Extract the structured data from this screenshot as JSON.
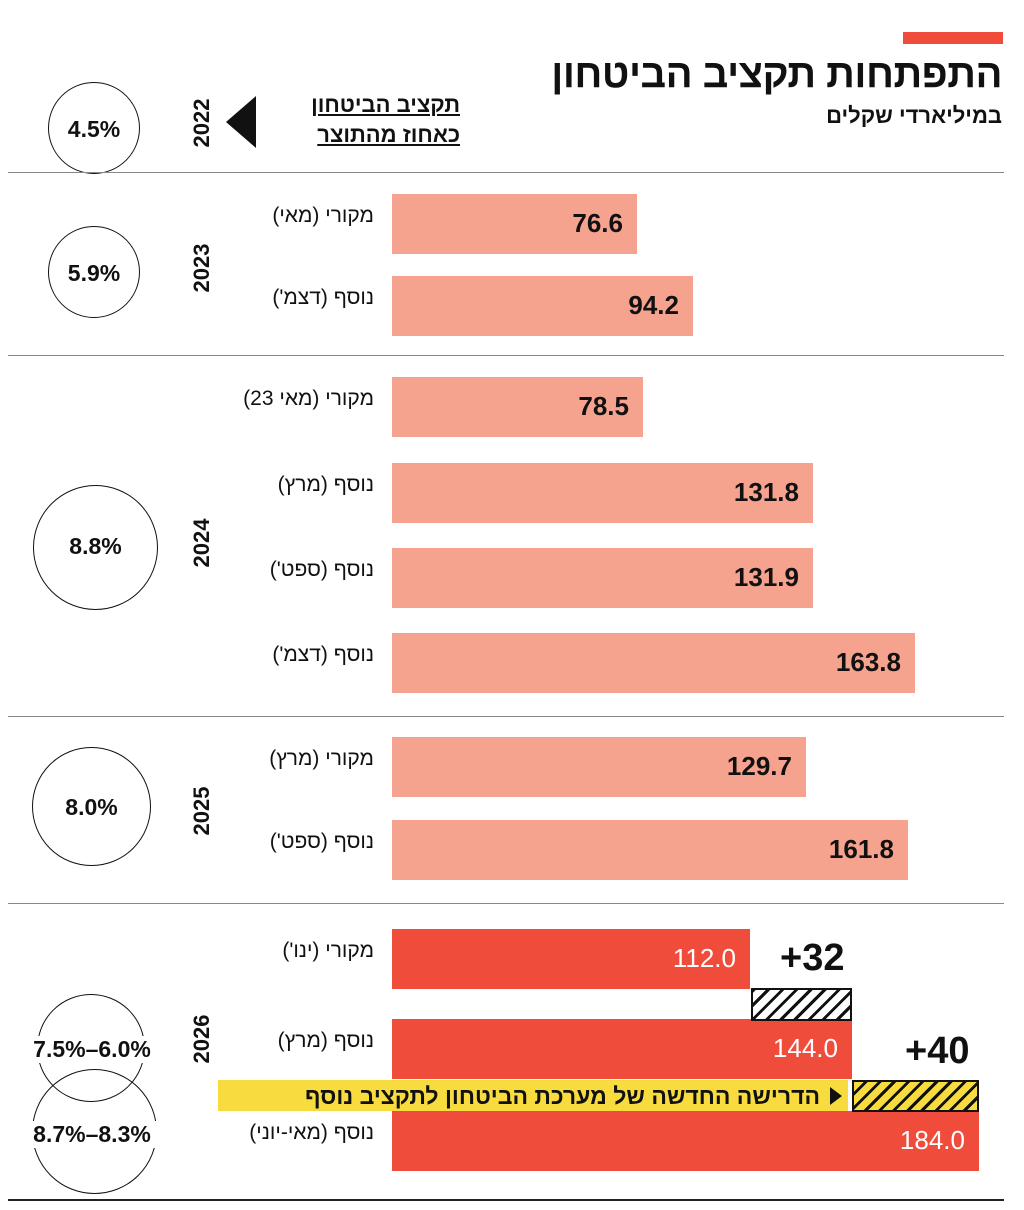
{
  "header": {
    "title": "התפתחות תקציב הביטחון",
    "subtitle": "במיליארדי שקלים",
    "gdp_label_line1": "תקציב הביטחון",
    "gdp_label_line2": "כאחוז מהתוצר",
    "accent_color": "#ef4c3c"
  },
  "years": [
    {
      "year": "2022",
      "gdp_pct": "4.5%"
    },
    {
      "year": "2023",
      "gdp_pct": "5.9%"
    },
    {
      "year": "2024",
      "gdp_pct": "8.8%"
    },
    {
      "year": "2025",
      "gdp_pct": "8.0%"
    },
    {
      "year": "2026",
      "gdp_pct_low": "7.5%–6.0%",
      "gdp_pct_high": "8.7%–8.3%"
    }
  ],
  "chart_data": {
    "type": "bar",
    "orientation": "horizontal",
    "title": "התפתחות תקציב הביטחון",
    "subtitle": "במיליארדי שקלים",
    "colors": {
      "past": "#f5a38e",
      "current": "#ef4c3c",
      "banner": "#f8dc3f"
    },
    "bars": [
      {
        "year": "2023",
        "label": "מקורי (מאי)",
        "value": 76.6,
        "value_text": "76.6"
      },
      {
        "year": "2023",
        "label": "נוסף (דצמ')",
        "value": 94.2,
        "value_text": "94.2"
      },
      {
        "year": "2024",
        "label": "מקורי (מאי 23)",
        "value": 78.5,
        "value_text": "78.5"
      },
      {
        "year": "2024",
        "label": "נוסף (מרץ)",
        "value": 131.8,
        "value_text": "131.8"
      },
      {
        "year": "2024",
        "label": "נוסף (ספט')",
        "value": 131.9,
        "value_text": "131.9"
      },
      {
        "year": "2024",
        "label": "נוסף (דצמ')",
        "value": 163.8,
        "value_text": "163.8"
      },
      {
        "year": "2025",
        "label": "מקורי (מרץ)",
        "value": 129.7,
        "value_text": "129.7"
      },
      {
        "year": "2025",
        "label": "נוסף (ספט')",
        "value": 161.8,
        "value_text": "161.8"
      },
      {
        "year": "2026",
        "label": "מקורי (ינו')",
        "value": 112.0,
        "value_text": "112.0"
      },
      {
        "year": "2026",
        "label": "נוסף (מרץ)",
        "value": 144.0,
        "value_text": "144.0"
      },
      {
        "year": "2026",
        "label": "נוסף (מאי-יוני)",
        "value": 184.0,
        "value_text": "184.0"
      }
    ],
    "increments": [
      {
        "text": "+32",
        "from": 112.0,
        "to": 144.0
      },
      {
        "text": "+40",
        "from": 144.0,
        "to": 184.0
      }
    ],
    "annotation": "הדרישה החדשה של מערכת הביטחון לתקציב נוסף"
  }
}
